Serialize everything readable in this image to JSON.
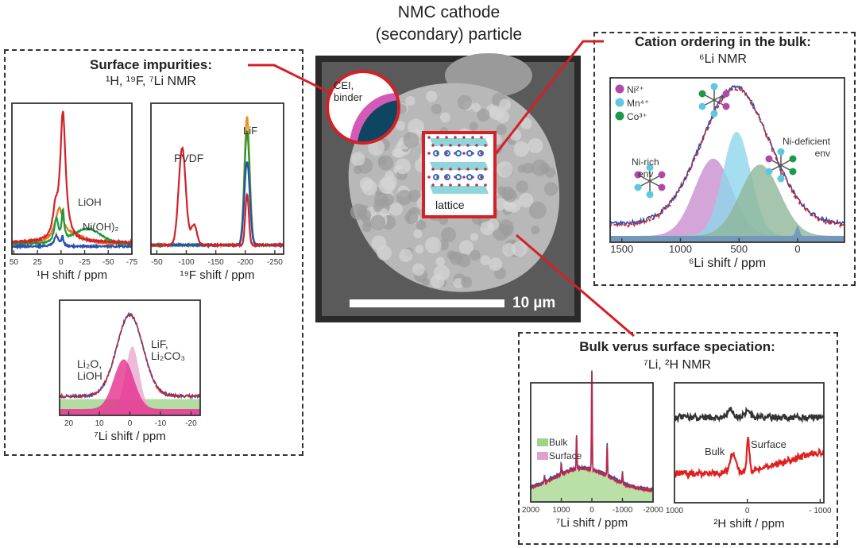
{
  "center": {
    "title_line1": "NMC cathode",
    "title_line2": "(secondary) particle",
    "scale_bar": "10 µm",
    "cei_label_1": "CEI,",
    "cei_label_2": "binder",
    "lattice_label": "lattice"
  },
  "panels": {
    "surface": {
      "title": "Surface impurities:",
      "subtitle": "¹H, ¹⁹F, ⁷Li NMR"
    },
    "cation": {
      "title": "Cation ordering in the bulk:",
      "subtitle": "⁶Li NMR"
    },
    "bulk_surface": {
      "title": "Bulk verus surface speciation:",
      "subtitle": "⁷Li, ²H NMR"
    }
  },
  "colors": {
    "connector": "#d42027",
    "ni": "#b04aa8",
    "mn": "#5fc8e0",
    "co": "#1a9a4a"
  },
  "chart_data": [
    {
      "id": "h1",
      "type": "line",
      "xlabel": "¹H shift / ppm",
      "xlim": [
        52,
        -75
      ],
      "xticks": [
        50,
        25,
        0,
        -25,
        -50,
        -75
      ],
      "tick_labels": [
        "50",
        "25",
        "0",
        "-25",
        "-50",
        "-75"
      ],
      "annotations": [
        "LiOH",
        "Ni(OH)₂"
      ],
      "series": [
        {
          "color": "#e8731d",
          "peaks": [
            [
              2,
              0.22,
              5,
              "l"
            ],
            [
              -10,
              0.06,
              15,
              "g"
            ]
          ],
          "base": 0.03
        },
        {
          "color": "#1d9b3a",
          "peaks": [
            [
              5,
              0.18,
              2.5,
              "l"
            ],
            [
              -2,
              0.22,
              1.5,
              "l"
            ],
            [
              -28,
              0.11,
              14,
              "g"
            ]
          ],
          "base": 0.03
        },
        {
          "color": "#2b4fb0",
          "peaks": [
            [
              5,
              0.08,
              2.5,
              "l"
            ],
            [
              -1.5,
              0.07,
              1.2,
              "l"
            ]
          ],
          "base": 0.01
        },
        {
          "color": "#d42027",
          "peaks": [
            [
              -2,
              0.95,
              3.5,
              "l"
            ],
            [
              6,
              0.18,
              3,
              "l"
            ]
          ],
          "base": 0.04
        }
      ]
    },
    {
      "id": "f19",
      "type": "line",
      "xlabel": "¹⁹F shift / ppm",
      "xlim": [
        -40,
        -265
      ],
      "xticks": [
        -50,
        -100,
        -150,
        -200,
        -250
      ],
      "tick_labels": [
        "-50",
        "-100",
        "-150",
        "-200",
        "-250"
      ],
      "annotations": [
        "PVDF",
        "LiF"
      ],
      "series": [
        {
          "color": "#e8931d",
          "peaks": [
            [
              -203,
              0.95,
              4.5,
              "g"
            ]
          ],
          "base": 0.02
        },
        {
          "color": "#1d9b3a",
          "peaks": [
            [
              -203,
              0.84,
              4.5,
              "g"
            ]
          ],
          "base": 0.02
        },
        {
          "color": "#2b4fb0",
          "peaks": [
            [
              -203,
              0.62,
              4.5,
              "g"
            ]
          ],
          "base": 0.02
        },
        {
          "color": "#d42027",
          "peaks": [
            [
              -93,
              0.72,
              6,
              "g"
            ],
            [
              -113,
              0.15,
              5,
              "g"
            ],
            [
              -203,
              0.38,
              3,
              "g"
            ]
          ],
          "base": 0.02
        }
      ]
    },
    {
      "id": "li7s",
      "type": "area",
      "xlabel": "⁷Li shift / ppm",
      "xlim": [
        23,
        -23
      ],
      "xticks": [
        20,
        10,
        0,
        -10,
        -20
      ],
      "tick_labels": [
        "20",
        "10",
        "0",
        "-10",
        "-20"
      ],
      "annotations": [
        "Li₂O,",
        "LiOH",
        "LiF,",
        "Li₂CO₃"
      ],
      "fills": [
        {
          "color": "#9fd38a",
          "peaks": [],
          "base": 0.1
        },
        {
          "color": "#e9a9cf",
          "peaks": [
            [
              -0.8,
              0.63,
              2.2,
              "g"
            ]
          ],
          "base": 0
        },
        {
          "color": "#e52f8f",
          "peaks": [
            [
              2,
              0.5,
              3.3,
              "g"
            ]
          ],
          "base": 0
        }
      ],
      "series": [
        {
          "color": "#2b4fb0",
          "peaks": [
            [
              0,
              0.82,
              4.3,
              "g"
            ]
          ],
          "base": 0.13
        },
        {
          "color": "#d42027",
          "dashed": true,
          "peaks": [
            [
              0,
              0.82,
              4.3,
              "g"
            ]
          ],
          "base": 0.13
        }
      ]
    },
    {
      "id": "li6",
      "type": "area",
      "xlabel": "⁶Li shift / ppm",
      "xlim": [
        1600,
        -400
      ],
      "xticks": [
        1500,
        1000,
        500,
        0
      ],
      "tick_labels": [
        "1500",
        "1000",
        "500",
        "0"
      ],
      "legend": [
        {
          "label": "Ni²⁺",
          "color": "#b04aa8"
        },
        {
          "label": "Mn⁴⁺",
          "color": "#5fc8e0"
        },
        {
          "label": "Co³⁺",
          "color": "#1a9a4a"
        }
      ],
      "annotations": [
        "Ni-rich",
        "env",
        "Ni-deficient",
        "env"
      ],
      "fills": [
        {
          "color": "#c98fcf",
          "peaks": [
            [
              720,
              0.52,
              160,
              "g"
            ]
          ],
          "base": 0
        },
        {
          "color": "#8fd6ea",
          "peaks": [
            [
              520,
              0.7,
              120,
              "g"
            ]
          ],
          "base": 0
        },
        {
          "color": "#8fb79a",
          "peaks": [
            [
              320,
              0.48,
              170,
              "g"
            ]
          ],
          "base": 0
        },
        {
          "color": "#6a90c0",
          "peaks": [
            [
              0,
              0.07,
              15,
              "g"
            ]
          ],
          "base": 0
        }
      ],
      "series": [
        {
          "color": "#2b4fb0",
          "peaks": [
            [
              530,
              0.92,
              290,
              "g"
            ]
          ],
          "base": 0.08
        },
        {
          "color": "#d42027",
          "dashed": true,
          "peaks": [
            [
              530,
              0.92,
              290,
              "g"
            ]
          ],
          "base": 0.07
        }
      ]
    },
    {
      "id": "li7b",
      "type": "area",
      "xlabel": "⁷Li shift / ppm",
      "xlim": [
        2000,
        -2000
      ],
      "xticks": [
        2000,
        1000,
        0,
        -1000,
        -2000
      ],
      "tick_labels": [
        "2000",
        "1000",
        "0",
        "-1000",
        "-2000"
      ],
      "legend": [
        {
          "label": "Bulk",
          "color": "#9fd38a"
        },
        {
          "label": "Surface",
          "color": "#e0a0cf"
        }
      ],
      "fills": [
        {
          "color": "#a8d890",
          "peaks": [
            [
              300,
              0.22,
              900,
              "g"
            ]
          ],
          "base": 0.04
        }
      ],
      "series": [
        {
          "color": "#2b4fb0",
          "peaks": [
            [
              300,
              0.22,
              900,
              "g"
            ],
            [
              0,
              0.95,
              12,
              "g"
            ],
            [
              500,
              0.33,
              12,
              "g"
            ],
            [
              -500,
              0.3,
              12,
              "g"
            ],
            [
              1000,
              0.1,
              12,
              "g"
            ],
            [
              -1000,
              0.1,
              12,
              "g"
            ],
            [
              1550,
              0.05,
              12,
              "g"
            ]
          ],
          "base": 0.05
        },
        {
          "color": "#c0284a",
          "peaks": [
            [
              300,
              0.22,
              900,
              "g"
            ],
            [
              0,
              0.95,
              12,
              "g"
            ],
            [
              500,
              0.33,
              12,
              "g"
            ],
            [
              -500,
              0.3,
              12,
              "g"
            ],
            [
              1000,
              0.1,
              12,
              "g"
            ],
            [
              -1000,
              0.1,
              12,
              "g"
            ],
            [
              1550,
              0.05,
              12,
              "g"
            ]
          ],
          "base": 0.04
        }
      ]
    },
    {
      "id": "h2",
      "type": "line",
      "xlabel": "²H shift / ppm",
      "xlim": [
        1000,
        -1050
      ],
      "xticks": [
        1000,
        0,
        -1000
      ],
      "tick_labels": [
        "1000",
        "0",
        "- 1000"
      ],
      "annotations": [
        "Bulk",
        "Surface"
      ],
      "series": [
        {
          "color": "#333333",
          "peaks": [
            [
              230,
              0.07,
              40,
              "g"
            ],
            [
              0,
              0.06,
              40,
              "g"
            ]
          ],
          "base": 0.76,
          "noise": 0.03
        },
        {
          "color": "#e0201f",
          "peaks": [
            [
              200,
              0.18,
              40,
              "g"
            ],
            [
              -10,
              0.3,
              18,
              "g"
            ],
            [
              -1050,
              0.2,
              500,
              "g"
            ]
          ],
          "base": 0.22,
          "noise": 0.03
        }
      ]
    }
  ]
}
